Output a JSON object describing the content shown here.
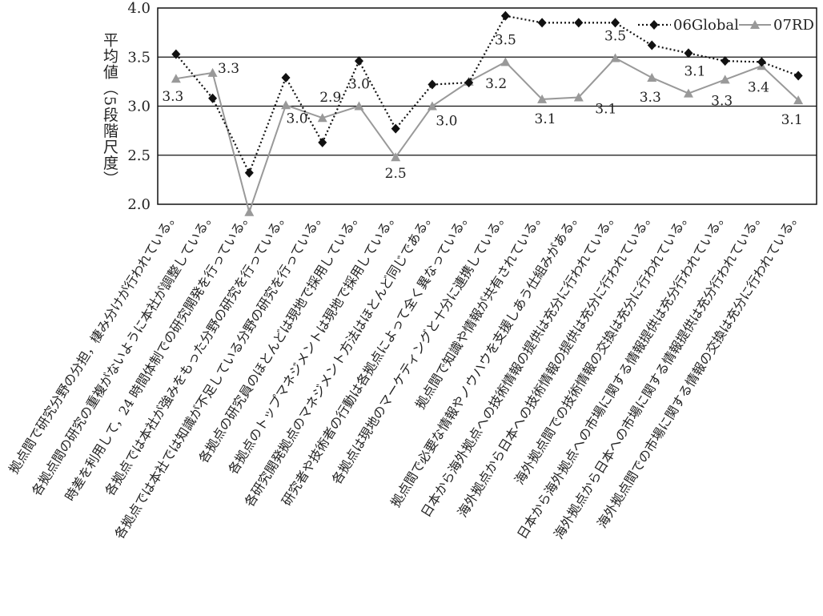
{
  "chart_data": {
    "type": "line",
    "ylabel": "平均値（5段階尺度）",
    "ylim": [
      2.0,
      4.0
    ],
    "yticks": [
      "2.0",
      "2.5",
      "3.0",
      "3.5",
      "4.0"
    ],
    "grid": true,
    "legend_position": "top-right",
    "categories": [
      "拠点間で研究分野の分担，棲み分けが行われている。",
      "各拠点間の研究の重複がないように本社が調整している。",
      "時差を利用して，24 時間体制での研究開発を行っている。",
      "各拠点では本社が強みをもった分野の研究を行っている。",
      "各拠点では本社では知識が不足している分野の研究を行っている。",
      "各拠点の研究員のほとんどは現地で採用している。",
      "各拠点のトップマネジメントは現地で採用している。",
      "各研究開発拠点のマネジメント方法はほとんど同じである。",
      "研究者や技術者の行動は各拠点によって全く異なっている。",
      "各拠点は現地のマーケティングと十分に連携している。",
      "拠点間で知識や情報が共有されている。",
      "拠点間で必要な情報やノウハウを支援しあう仕組みがある。",
      "日本から海外拠点への技術情報の提供は充分に行われている。",
      "海外拠点から日本への技術情報の提供は充分に行われている。",
      "海外拠点間での技術情報の交換は充分に行われている。",
      "日本から海外拠点への市場に関する情報提供は充分行われている。",
      "海外拠点から日本への市場に関する情報提供は充分行われている。",
      "海外拠点間での市場に関する情報の交換は充分に行われている。"
    ],
    "series": [
      {
        "name": "06Global",
        "color": "#111111",
        "marker": "diamond",
        "line": "dotted",
        "values": [
          3.53,
          3.08,
          2.32,
          3.29,
          2.63,
          3.46,
          2.77,
          3.22,
          3.24,
          3.92,
          3.85,
          3.85,
          3.85,
          3.62,
          3.54,
          3.46,
          3.45,
          3.31
        ]
      },
      {
        "name": "07RD",
        "color": "#999999",
        "marker": "triangle",
        "line": "solid",
        "values": [
          3.28,
          3.34,
          1.92,
          3.01,
          2.88,
          3.0,
          2.48,
          3.0,
          3.25,
          3.45,
          3.07,
          3.09,
          3.49,
          3.29,
          3.13,
          3.27,
          3.41,
          3.06
        ],
        "data_labels": [
          "3.3",
          "3.3",
          "",
          "3.0",
          "2.9",
          "3.0",
          "2.5",
          "3.0",
          "3.2",
          "3.5",
          "3.1",
          "3.1",
          "3.5",
          "3.3",
          "3.1",
          "3.3",
          "3.4",
          "3.1"
        ]
      }
    ]
  }
}
